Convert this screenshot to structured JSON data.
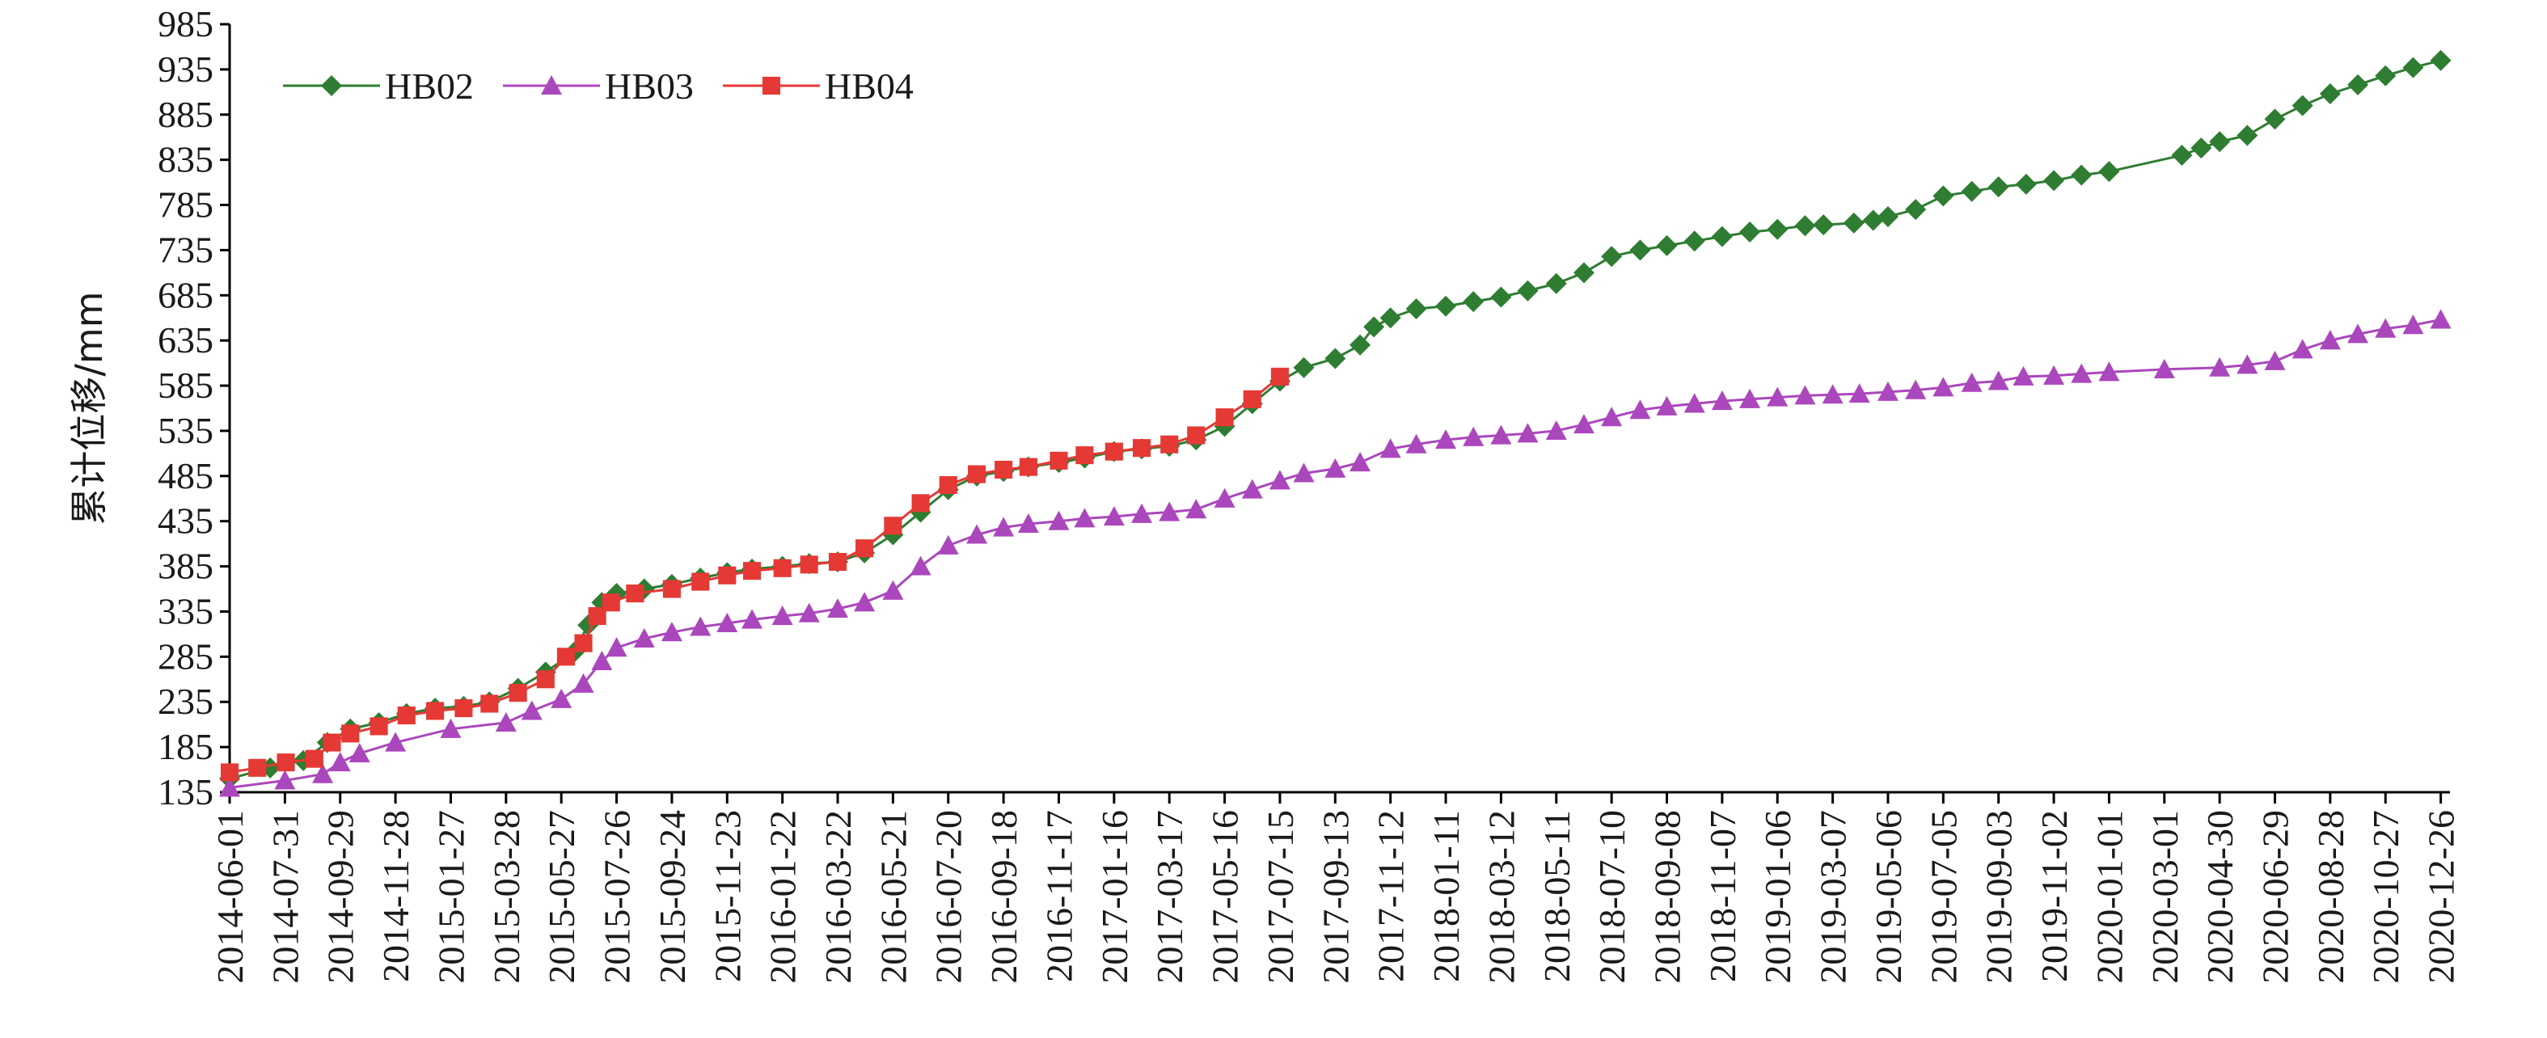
{
  "chart_data": {
    "type": "line",
    "ylabel": "累计位移/mm",
    "xlabel": "",
    "ylim": [
      135,
      985
    ],
    "y_ticks": [
      135,
      185,
      235,
      285,
      335,
      385,
      435,
      485,
      535,
      585,
      635,
      685,
      735,
      785,
      835,
      885,
      935,
      985
    ],
    "x_range": [
      "2014-06-01",
      "2021-01-05"
    ],
    "x_ticks": [
      "2014-06-01",
      "2014-07-31",
      "2014-09-29",
      "2014-11-28",
      "2015-01-27",
      "2015-03-28",
      "2015-05-27",
      "2015-07-26",
      "2015-09-24",
      "2015-11-23",
      "2016-01-22",
      "2016-03-22",
      "2016-05-21",
      "2016-07-20",
      "2016-09-18",
      "2016-11-17",
      "2017-01-16",
      "2017-03-17",
      "2017-05-16",
      "2017-07-15",
      "2017-09-13",
      "2017-11-12",
      "2018-01-11",
      "2018-03-12",
      "2018-05-11",
      "2018-07-10",
      "2018-09-08",
      "2018-11-07",
      "2019-01-06",
      "2019-03-07",
      "2019-05-06",
      "2019-07-05",
      "2019-09-03",
      "2019-11-02",
      "2020-01-01",
      "2020-03-01",
      "2020-04-30",
      "2020-06-29",
      "2020-08-28",
      "2020-10-27",
      "2020-12-26"
    ],
    "grid": false,
    "legend_position": "top-left",
    "series": [
      {
        "name": "HB02",
        "color": "#2e7d32",
        "marker": "diamond",
        "points": [
          [
            "2014-06-01",
            150
          ],
          [
            "2014-07-15",
            162
          ],
          [
            "2014-08-20",
            170
          ],
          [
            "2014-09-15",
            190
          ],
          [
            "2014-10-10",
            205
          ],
          [
            "2014-11-10",
            212
          ],
          [
            "2014-12-10",
            222
          ],
          [
            "2015-01-10",
            228
          ],
          [
            "2015-02-10",
            230
          ],
          [
            "2015-03-10",
            235
          ],
          [
            "2015-04-10",
            250
          ],
          [
            "2015-05-10",
            268
          ],
          [
            "2015-06-10",
            290
          ],
          [
            "2015-06-25",
            320
          ],
          [
            "2015-07-10",
            345
          ],
          [
            "2015-07-26",
            355
          ],
          [
            "2015-08-25",
            360
          ],
          [
            "2015-09-24",
            365
          ],
          [
            "2015-10-25",
            372
          ],
          [
            "2015-11-23",
            378
          ],
          [
            "2015-12-20",
            382
          ],
          [
            "2016-01-22",
            385
          ],
          [
            "2016-02-20",
            388
          ],
          [
            "2016-03-22",
            390
          ],
          [
            "2016-04-20",
            400
          ],
          [
            "2016-05-21",
            420
          ],
          [
            "2016-06-20",
            445
          ],
          [
            "2016-07-20",
            470
          ],
          [
            "2016-08-20",
            485
          ],
          [
            "2016-09-18",
            490
          ],
          [
            "2016-10-15",
            495
          ],
          [
            "2016-11-17",
            500
          ],
          [
            "2016-12-15",
            505
          ],
          [
            "2017-01-16",
            512
          ],
          [
            "2017-02-15",
            515
          ],
          [
            "2017-03-17",
            518
          ],
          [
            "2017-04-15",
            525
          ],
          [
            "2017-05-16",
            540
          ],
          [
            "2017-06-15",
            565
          ],
          [
            "2017-07-15",
            590
          ],
          [
            "2017-08-10",
            605
          ],
          [
            "2017-09-13",
            615
          ],
          [
            "2017-10-10",
            630
          ],
          [
            "2017-10-25",
            650
          ],
          [
            "2017-11-12",
            660
          ],
          [
            "2017-12-10",
            670
          ],
          [
            "2018-01-11",
            673
          ],
          [
            "2018-02-10",
            678
          ],
          [
            "2018-03-12",
            683
          ],
          [
            "2018-04-10",
            690
          ],
          [
            "2018-05-11",
            698
          ],
          [
            "2018-06-10",
            710
          ],
          [
            "2018-07-10",
            728
          ],
          [
            "2018-08-10",
            735
          ],
          [
            "2018-09-08",
            740
          ],
          [
            "2018-10-08",
            745
          ],
          [
            "2018-11-07",
            750
          ],
          [
            "2018-12-07",
            755
          ],
          [
            "2019-01-06",
            758
          ],
          [
            "2019-02-05",
            762
          ],
          [
            "2019-02-25",
            763
          ],
          [
            "2019-03-30",
            765
          ],
          [
            "2019-04-20",
            768
          ],
          [
            "2019-05-06",
            772
          ],
          [
            "2019-06-05",
            780
          ],
          [
            "2019-07-05",
            795
          ],
          [
            "2019-08-05",
            800
          ],
          [
            "2019-09-03",
            805
          ],
          [
            "2019-10-03",
            808
          ],
          [
            "2019-11-02",
            812
          ],
          [
            "2019-12-02",
            818
          ],
          [
            "2020-01-01",
            822
          ],
          [
            "2020-03-20",
            840
          ],
          [
            "2020-04-10",
            848
          ],
          [
            "2020-04-30",
            855
          ],
          [
            "2020-05-30",
            862
          ],
          [
            "2020-06-29",
            880
          ],
          [
            "2020-07-29",
            895
          ],
          [
            "2020-08-28",
            908
          ],
          [
            "2020-09-27",
            918
          ],
          [
            "2020-10-27",
            928
          ],
          [
            "2020-11-26",
            937
          ],
          [
            "2020-12-26",
            945
          ]
        ]
      },
      {
        "name": "HB03",
        "color": "#ab47bc",
        "marker": "triangle",
        "points": [
          [
            "2014-06-01",
            140
          ],
          [
            "2014-07-31",
            148
          ],
          [
            "2014-09-10",
            155
          ],
          [
            "2014-09-29",
            168
          ],
          [
            "2014-10-20",
            178
          ],
          [
            "2014-11-28",
            190
          ],
          [
            "2015-01-27",
            205
          ],
          [
            "2015-03-28",
            212
          ],
          [
            "2015-04-25",
            225
          ],
          [
            "2015-05-27",
            238
          ],
          [
            "2015-06-20",
            255
          ],
          [
            "2015-07-10",
            280
          ],
          [
            "2015-07-26",
            295
          ],
          [
            "2015-08-25",
            305
          ],
          [
            "2015-09-24",
            312
          ],
          [
            "2015-10-25",
            318
          ],
          [
            "2015-11-23",
            322
          ],
          [
            "2015-12-20",
            326
          ],
          [
            "2016-01-22",
            330
          ],
          [
            "2016-02-20",
            333
          ],
          [
            "2016-03-22",
            338
          ],
          [
            "2016-04-20",
            345
          ],
          [
            "2016-05-21",
            358
          ],
          [
            "2016-06-20",
            385
          ],
          [
            "2016-07-20",
            408
          ],
          [
            "2016-08-20",
            420
          ],
          [
            "2016-09-18",
            428
          ],
          [
            "2016-10-15",
            432
          ],
          [
            "2016-11-17",
            435
          ],
          [
            "2016-12-15",
            438
          ],
          [
            "2017-01-16",
            440
          ],
          [
            "2017-02-15",
            443
          ],
          [
            "2017-03-17",
            445
          ],
          [
            "2017-04-15",
            448
          ],
          [
            "2017-05-16",
            460
          ],
          [
            "2017-06-15",
            470
          ],
          [
            "2017-07-15",
            480
          ],
          [
            "2017-08-10",
            488
          ],
          [
            "2017-09-13",
            493
          ],
          [
            "2017-10-10",
            500
          ],
          [
            "2017-11-12",
            515
          ],
          [
            "2017-12-10",
            520
          ],
          [
            "2018-01-11",
            525
          ],
          [
            "2018-02-10",
            528
          ],
          [
            "2018-03-12",
            530
          ],
          [
            "2018-04-10",
            532
          ],
          [
            "2018-05-11",
            535
          ],
          [
            "2018-06-10",
            542
          ],
          [
            "2018-07-10",
            550
          ],
          [
            "2018-08-10",
            558
          ],
          [
            "2018-09-08",
            562
          ],
          [
            "2018-10-08",
            565
          ],
          [
            "2018-11-07",
            568
          ],
          [
            "2018-12-07",
            570
          ],
          [
            "2019-01-06",
            572
          ],
          [
            "2019-02-05",
            574
          ],
          [
            "2019-03-07",
            575
          ],
          [
            "2019-04-05",
            576
          ],
          [
            "2019-05-06",
            578
          ],
          [
            "2019-06-05",
            580
          ],
          [
            "2019-07-05",
            583
          ],
          [
            "2019-08-05",
            588
          ],
          [
            "2019-09-03",
            590
          ],
          [
            "2019-09-30",
            595
          ],
          [
            "2019-11-02",
            596
          ],
          [
            "2019-12-02",
            598
          ],
          [
            "2020-01-01",
            600
          ],
          [
            "2020-03-01",
            603
          ],
          [
            "2020-04-30",
            605
          ],
          [
            "2020-05-30",
            608
          ],
          [
            "2020-06-29",
            612
          ],
          [
            "2020-07-29",
            625
          ],
          [
            "2020-08-28",
            635
          ],
          [
            "2020-09-27",
            642
          ],
          [
            "2020-10-27",
            648
          ],
          [
            "2020-11-26",
            652
          ],
          [
            "2020-12-26",
            658
          ]
        ]
      },
      {
        "name": "HB04",
        "color": "#e53935",
        "marker": "square",
        "points": [
          [
            "2014-06-01",
            157
          ],
          [
            "2014-07-01",
            162
          ],
          [
            "2014-08-01",
            168
          ],
          [
            "2014-09-01",
            172
          ],
          [
            "2014-09-20",
            190
          ],
          [
            "2014-10-10",
            200
          ],
          [
            "2014-11-10",
            208
          ],
          [
            "2014-12-10",
            220
          ],
          [
            "2015-01-10",
            225
          ],
          [
            "2015-02-10",
            228
          ],
          [
            "2015-03-10",
            233
          ],
          [
            "2015-04-10",
            245
          ],
          [
            "2015-05-10",
            260
          ],
          [
            "2015-06-01",
            285
          ],
          [
            "2015-06-20",
            300
          ],
          [
            "2015-07-05",
            330
          ],
          [
            "2015-07-20",
            345
          ],
          [
            "2015-08-15",
            355
          ],
          [
            "2015-09-24",
            360
          ],
          [
            "2015-10-25",
            368
          ],
          [
            "2015-11-23",
            375
          ],
          [
            "2015-12-20",
            380
          ],
          [
            "2016-01-22",
            383
          ],
          [
            "2016-02-20",
            387
          ],
          [
            "2016-03-22",
            390
          ],
          [
            "2016-04-20",
            405
          ],
          [
            "2016-05-21",
            430
          ],
          [
            "2016-06-20",
            455
          ],
          [
            "2016-07-20",
            475
          ],
          [
            "2016-08-20",
            487
          ],
          [
            "2016-09-18",
            492
          ],
          [
            "2016-10-15",
            495
          ],
          [
            "2016-11-17",
            502
          ],
          [
            "2016-12-15",
            508
          ],
          [
            "2017-01-16",
            512
          ],
          [
            "2017-02-15",
            516
          ],
          [
            "2017-03-17",
            520
          ],
          [
            "2017-04-15",
            530
          ],
          [
            "2017-05-16",
            550
          ],
          [
            "2017-06-15",
            570
          ],
          [
            "2017-07-15",
            595
          ]
        ]
      }
    ]
  }
}
